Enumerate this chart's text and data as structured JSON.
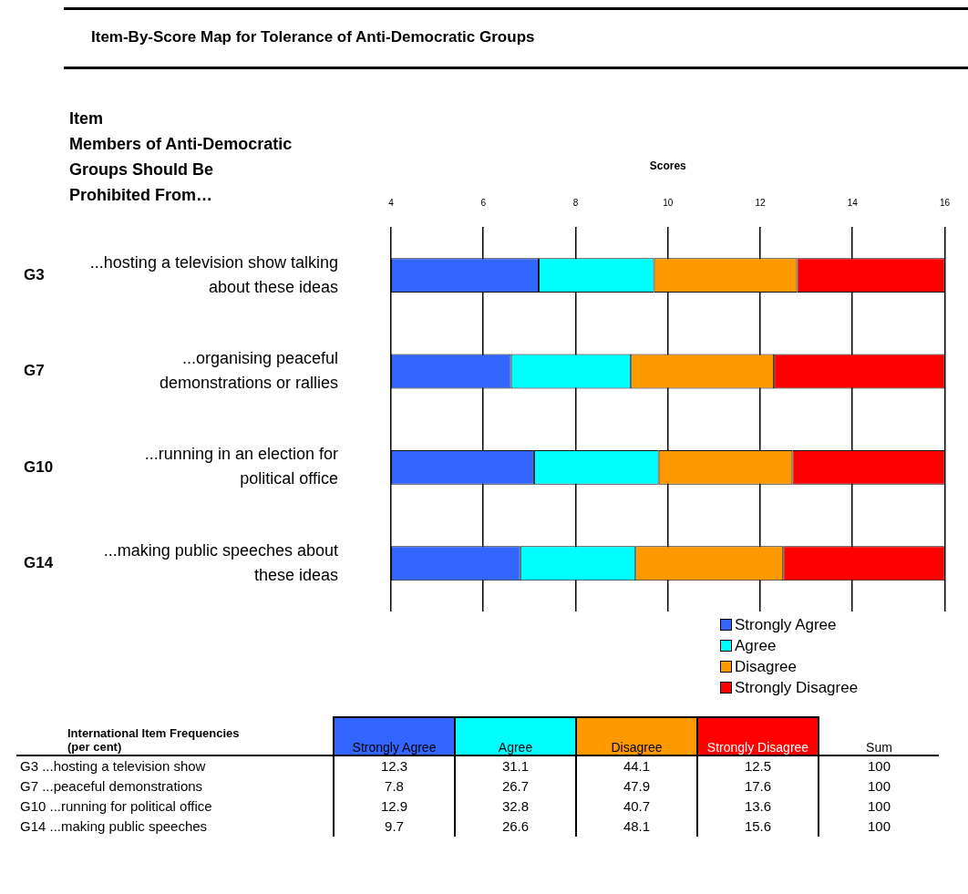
{
  "chart_data": [
    {
      "type": "bar",
      "title": "Item-By-Score Map for Tolerance of Anti-Democratic Groups",
      "ylabel": "Item\nMembers of Anti-Democratic Groups Should Be Prohibited From…",
      "xlabel": "Scores",
      "orientation": "horizontal",
      "categories": [
        "G3 ...hosting a television show talking about these ideas",
        "G7 ...organising peaceful demonstrations or rallies",
        "G10 ...running in an election for political office",
        "G14 ...making public speeches about these ideas"
      ],
      "series": [
        {
          "name": "Strongly Agree",
          "color": "#3366ff",
          "base": [
            4,
            4,
            4,
            4
          ],
          "values": [
            3.2,
            2.6,
            3.1,
            2.8
          ]
        },
        {
          "name": "Agree",
          "color": "#00ffff",
          "base": [
            7.2,
            6.6,
            7.1,
            6.8
          ],
          "values": [
            2.5,
            2.6,
            2.7,
            2.5
          ]
        },
        {
          "name": "Disagree",
          "color": "#ff9900",
          "base": [
            9.7,
            9.2,
            9.8,
            9.3
          ],
          "values": [
            3.1,
            3.1,
            2.9,
            3.2
          ]
        },
        {
          "name": "Strongly Disagree",
          "color": "#ff0000",
          "base": [
            12.8,
            12.3,
            12.7,
            12.5
          ],
          "values": [
            3.2,
            3.7,
            3.3,
            3.5
          ]
        }
      ],
      "xlim": [
        4,
        16
      ],
      "xticks": [
        4,
        6,
        8,
        10,
        12,
        14,
        16
      ],
      "grid": "x",
      "legend": "bottom right"
    },
    {
      "type": "other",
      "title": "International Item Frequencies\n(per cent)",
      "data_labels": true,
      "categories": [
        "G3 ...hosting a television show",
        "G7 ...peaceful demonstrations",
        "G10 ...running for political office",
        "G14 ...making public speeches"
      ],
      "series": [
        {
          "name": "Strongly Agree",
          "values": [
            12.3,
            7.8,
            12.9,
            9.7
          ]
        },
        {
          "name": "Agree",
          "values": [
            31.1,
            26.7,
            32.8,
            26.6
          ]
        },
        {
          "name": "Disagree",
          "values": [
            44.1,
            47.9,
            40.7,
            48.1
          ]
        },
        {
          "name": "Strongly Disagree",
          "values": [
            12.5,
            17.6,
            13.6,
            15.6
          ]
        },
        {
          "name": "Sum",
          "values": [
            100,
            100,
            100,
            100
          ]
        }
      ]
    }
  ]
}
